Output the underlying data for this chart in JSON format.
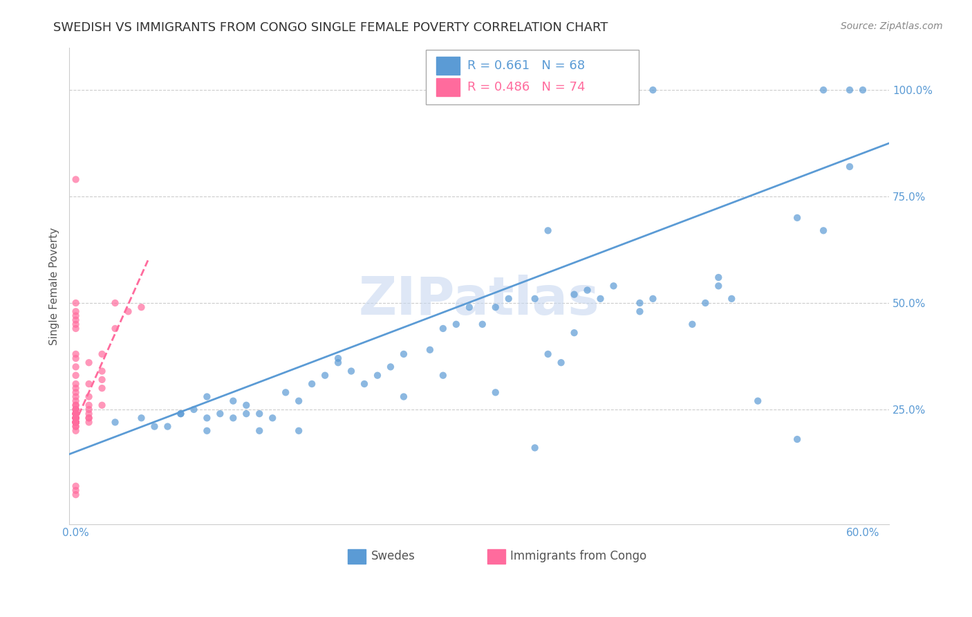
{
  "title": "SWEDISH VS IMMIGRANTS FROM CONGO SINGLE FEMALE POVERTY CORRELATION CHART",
  "source": "Source: ZipAtlas.com",
  "ylabel": "Single Female Poverty",
  "watermark": "ZIPatlas",
  "legend_blue_r": "R = 0.661",
  "legend_blue_n": "N = 68",
  "legend_pink_r": "R = 0.486",
  "legend_pink_n": "N = 74",
  "legend_blue_label": "Swedes",
  "legend_pink_label": "Immigrants from Congo",
  "xlim": [
    -0.005,
    0.62
  ],
  "ylim": [
    -0.02,
    1.1
  ],
  "xticks": [
    0.0,
    0.6
  ],
  "xtick_labels": [
    "0.0%",
    "60.0%"
  ],
  "yticks": [
    0.25,
    0.5,
    0.75,
    1.0
  ],
  "ytick_labels": [
    "25.0%",
    "50.0%",
    "75.0%",
    "100.0%"
  ],
  "blue_color": "#5B9BD5",
  "pink_color": "#FF6B9D",
  "axis_color": "#5B9BD5",
  "grid_color": "#CCCCCC",
  "background_color": "#FFFFFF",
  "blue_line_x": [
    -0.005,
    0.62
  ],
  "blue_line_y": [
    0.145,
    0.875
  ],
  "pink_line_x": [
    -0.001,
    0.055
  ],
  "pink_line_y": [
    0.215,
    0.6
  ],
  "title_fontsize": 13,
  "axis_label_fontsize": 11,
  "tick_fontsize": 11,
  "legend_fontsize": 13,
  "watermark_fontsize": 55,
  "watermark_color": "#C8D8F0",
  "source_fontsize": 10,
  "blue_x": [
    0.03,
    0.05,
    0.07,
    0.08,
    0.09,
    0.1,
    0.1,
    0.11,
    0.12,
    0.12,
    0.13,
    0.14,
    0.14,
    0.15,
    0.16,
    0.17,
    0.18,
    0.19,
    0.2,
    0.21,
    0.22,
    0.23,
    0.24,
    0.25,
    0.27,
    0.28,
    0.29,
    0.3,
    0.31,
    0.32,
    0.33,
    0.35,
    0.36,
    0.37,
    0.38,
    0.39,
    0.4,
    0.41,
    0.43,
    0.44,
    0.47,
    0.48,
    0.49,
    0.5,
    0.52,
    0.55,
    0.57,
    0.59,
    0.44,
    0.36,
    0.57,
    0.3,
    0.35,
    0.06,
    0.08,
    0.1,
    0.13,
    0.17,
    0.2,
    0.25,
    0.28,
    0.32,
    0.38,
    0.43,
    0.49,
    0.55,
    0.59,
    0.6
  ],
  "blue_y": [
    0.22,
    0.23,
    0.21,
    0.24,
    0.25,
    0.23,
    0.28,
    0.24,
    0.23,
    0.27,
    0.26,
    0.2,
    0.24,
    0.23,
    0.29,
    0.27,
    0.31,
    0.33,
    0.37,
    0.34,
    0.31,
    0.33,
    0.35,
    0.38,
    0.39,
    0.44,
    0.45,
    0.49,
    0.45,
    0.49,
    0.51,
    0.51,
    0.38,
    0.36,
    0.52,
    0.53,
    0.51,
    0.54,
    0.5,
    0.51,
    0.45,
    0.5,
    0.56,
    0.51,
    0.27,
    0.18,
    0.67,
    1.0,
    1.0,
    0.67,
    1.0,
    1.0,
    0.16,
    0.21,
    0.24,
    0.2,
    0.24,
    0.2,
    0.36,
    0.28,
    0.33,
    0.29,
    0.43,
    0.48,
    0.54,
    0.7,
    0.82,
    1.0
  ],
  "pink_x": [
    0.0,
    0.0,
    0.0,
    0.0,
    0.0,
    0.0,
    0.0,
    0.0,
    0.0,
    0.0,
    0.0,
    0.0,
    0.0,
    0.0,
    0.0,
    0.0,
    0.0,
    0.0,
    0.0,
    0.0,
    0.0,
    0.0,
    0.0,
    0.0,
    0.0,
    0.0,
    0.0,
    0.0,
    0.0,
    0.0,
    0.0,
    0.0,
    0.0,
    0.0,
    0.0,
    0.0,
    0.0,
    0.0,
    0.0,
    0.0,
    0.0,
    0.0,
    0.0,
    0.0,
    0.0,
    0.0,
    0.0,
    0.0,
    0.0,
    0.0,
    0.0,
    0.0,
    0.0,
    0.01,
    0.01,
    0.01,
    0.01,
    0.01,
    0.01,
    0.02,
    0.02,
    0.02,
    0.03,
    0.03,
    0.04,
    0.05,
    0.01,
    0.02,
    0.01,
    0.01,
    0.02,
    0.0,
    0.0,
    0.0
  ],
  "pink_y": [
    0.22,
    0.23,
    0.24,
    0.25,
    0.22,
    0.23,
    0.21,
    0.22,
    0.23,
    0.24,
    0.22,
    0.23,
    0.22,
    0.23,
    0.21,
    0.22,
    0.23,
    0.24,
    0.22,
    0.23,
    0.24,
    0.22,
    0.22,
    0.23,
    0.24,
    0.23,
    0.22,
    0.24,
    0.22,
    0.23,
    0.25,
    0.24,
    0.27,
    0.25,
    0.22,
    0.26,
    0.26,
    0.28,
    0.29,
    0.3,
    0.31,
    0.33,
    0.35,
    0.37,
    0.38,
    0.79,
    0.47,
    0.5,
    0.46,
    0.48,
    0.45,
    0.44,
    0.2,
    0.24,
    0.28,
    0.26,
    0.23,
    0.31,
    0.36,
    0.3,
    0.32,
    0.38,
    0.44,
    0.5,
    0.48,
    0.49,
    0.22,
    0.26,
    0.25,
    0.23,
    0.34,
    0.05,
    0.06,
    0.07
  ]
}
